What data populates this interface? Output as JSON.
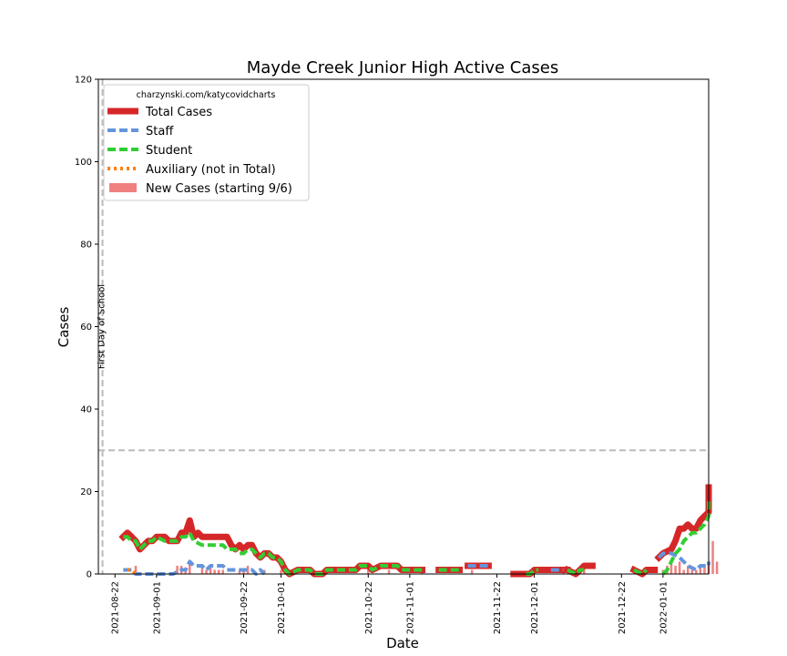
{
  "chart_data": {
    "type": "line",
    "title": "Mayde Creek Junior High Active Cases",
    "xlabel": "Date",
    "ylabel": "Cases",
    "ylim": [
      0,
      120
    ],
    "xlim": [
      "2021-08-18",
      "2022-01-12"
    ],
    "yticks": [
      0,
      20,
      40,
      60,
      80,
      100,
      120
    ],
    "xticks": [
      "2021-08-22",
      "2021-09-01",
      "2021-09-22",
      "2021-10-01",
      "2021-10-22",
      "2021-11-01",
      "2021-11-22",
      "2021-12-01",
      "2021-12-22",
      "2022-01-01"
    ],
    "legend_title": "charzynski.com/katycovidcharts",
    "legend_position": "upper-left",
    "annotations": [
      {
        "text": "First Day of School",
        "date": "2021-08-19"
      }
    ],
    "reference_lines": [
      {
        "type": "vertical",
        "date": "2021-08-19"
      },
      {
        "type": "horizontal",
        "y": 30
      }
    ],
    "colors": {
      "total": "#d62728",
      "staff": "#6495dc",
      "student": "#32cd32",
      "auxiliary": "#ff7f0e",
      "new_cases": "#f08080",
      "reference": "#bbbbbb"
    },
    "series": [
      {
        "name": "Total Cases",
        "style": "solid",
        "points": [
          [
            "2021-08-24",
            9
          ],
          [
            "2021-08-25",
            10
          ],
          [
            "2021-08-26",
            9
          ],
          [
            "2021-08-27",
            8
          ],
          [
            "2021-08-28",
            6
          ],
          [
            "2021-08-29",
            7
          ],
          [
            "2021-08-30",
            8
          ],
          [
            "2021-08-31",
            8
          ],
          [
            "2021-09-01",
            9
          ],
          [
            "2021-09-03",
            9
          ],
          [
            "2021-09-04",
            8
          ],
          [
            "2021-09-06",
            8
          ],
          [
            "2021-09-07",
            10
          ],
          [
            "2021-09-08",
            10
          ],
          [
            "2021-09-09",
            13
          ],
          [
            "2021-09-10",
            9
          ],
          [
            "2021-09-11",
            10
          ],
          [
            "2021-09-12",
            9
          ],
          [
            "2021-09-18",
            9
          ],
          [
            "2021-09-19",
            7
          ],
          [
            "2021-09-20",
            6
          ],
          [
            "2021-09-21",
            7
          ],
          [
            "2021-09-22",
            6
          ],
          [
            "2021-09-23",
            7
          ],
          [
            "2021-09-24",
            7
          ],
          [
            "2021-09-25",
            5
          ],
          [
            "2021-09-26",
            4
          ],
          [
            "2021-09-27",
            5
          ],
          [
            "2021-09-28",
            5
          ],
          [
            "2021-09-29",
            4
          ],
          [
            "2021-09-30",
            4
          ],
          [
            "2021-10-01",
            3
          ],
          [
            "2021-10-02",
            1
          ],
          [
            "2021-10-03",
            0
          ],
          [
            "2021-10-05",
            1
          ],
          [
            "2021-10-08",
            1
          ],
          [
            "2021-10-09",
            0
          ],
          [
            "2021-10-11",
            0
          ],
          [
            "2021-10-12",
            1
          ],
          [
            "2021-10-19",
            1
          ],
          [
            "2021-10-20",
            2
          ],
          [
            "2021-10-22",
            2
          ],
          [
            "2021-10-23",
            1
          ],
          [
            "2021-10-25",
            2
          ],
          [
            "2021-10-29",
            2
          ],
          [
            "2021-10-30",
            1
          ],
          [
            "2021-11-04",
            1
          ]
        ]
      },
      {
        "name": "Staff",
        "style": "dashed",
        "points": [
          [
            "2021-08-24",
            1
          ],
          [
            "2021-08-26",
            1
          ],
          [
            "2021-08-27",
            0
          ],
          [
            "2021-09-05",
            0
          ],
          [
            "2021-09-07",
            1
          ],
          [
            "2021-09-08",
            1
          ],
          [
            "2021-09-09",
            3
          ],
          [
            "2021-09-10",
            2
          ],
          [
            "2021-09-11",
            2
          ],
          [
            "2021-09-12",
            2
          ],
          [
            "2021-09-13",
            1
          ],
          [
            "2021-09-14",
            2
          ],
          [
            "2021-09-17",
            2
          ],
          [
            "2021-09-18",
            1
          ],
          [
            "2021-09-24",
            1
          ],
          [
            "2021-09-25",
            0
          ],
          [
            "2021-09-26",
            1
          ],
          [
            "2021-09-27",
            0
          ]
        ]
      },
      {
        "name": "Student",
        "style": "dashed",
        "points": [
          [
            "2021-08-24",
            9
          ],
          [
            "2021-08-25",
            9
          ],
          [
            "2021-08-26",
            8
          ],
          [
            "2021-08-27",
            8
          ],
          [
            "2021-08-28",
            6
          ],
          [
            "2021-08-29",
            7
          ],
          [
            "2021-08-30",
            8
          ],
          [
            "2021-08-31",
            8
          ],
          [
            "2021-09-01",
            9
          ],
          [
            "2021-09-03",
            8
          ],
          [
            "2021-09-06",
            8
          ],
          [
            "2021-09-07",
            9
          ],
          [
            "2021-09-08",
            9
          ],
          [
            "2021-09-09",
            10
          ],
          [
            "2021-09-10",
            8
          ],
          [
            "2021-09-12",
            7
          ],
          [
            "2021-09-17",
            7
          ],
          [
            "2021-09-18",
            6
          ],
          [
            "2021-09-20",
            6
          ],
          [
            "2021-09-21",
            5
          ],
          [
            "2021-09-22",
            5
          ],
          [
            "2021-09-23",
            6
          ],
          [
            "2021-09-24",
            6
          ],
          [
            "2021-09-25",
            5
          ],
          [
            "2021-09-26",
            4
          ],
          [
            "2021-09-27",
            5
          ],
          [
            "2021-09-28",
            5
          ],
          [
            "2021-09-29",
            4
          ],
          [
            "2021-09-30",
            4
          ],
          [
            "2021-10-01",
            3
          ],
          [
            "2021-10-02",
            1
          ],
          [
            "2021-10-03",
            0
          ],
          [
            "2021-10-05",
            1
          ],
          [
            "2021-10-08",
            1
          ],
          [
            "2021-10-09",
            0
          ],
          [
            "2021-10-11",
            0
          ],
          [
            "2021-10-12",
            1
          ],
          [
            "2021-10-19",
            1
          ],
          [
            "2021-10-20",
            2
          ],
          [
            "2021-10-22",
            2
          ],
          [
            "2021-10-23",
            1
          ],
          [
            "2021-10-25",
            2
          ],
          [
            "2021-10-29",
            2
          ],
          [
            "2021-10-30",
            1
          ],
          [
            "2021-11-04",
            1
          ]
        ]
      },
      {
        "name": "Auxiliary (not in Total)",
        "style": "dotted",
        "points": [
          [
            "2021-08-25",
            1
          ],
          [
            "2021-08-26",
            1
          ],
          [
            "2021-08-27",
            0
          ]
        ]
      }
    ],
    "segments": [
      {
        "series": "Total Cases",
        "points": [
          [
            "2021-11-08",
            1
          ],
          [
            "2021-11-13",
            1
          ]
        ]
      },
      {
        "series": "Student",
        "points": [
          [
            "2021-11-08",
            1
          ],
          [
            "2021-11-13",
            1
          ]
        ]
      },
      {
        "series": "Total Cases",
        "points": [
          [
            "2021-11-15",
            2
          ],
          [
            "2021-11-20",
            2
          ]
        ]
      },
      {
        "series": "Staff",
        "points": [
          [
            "2021-11-15",
            2
          ],
          [
            "2021-11-20",
            2
          ]
        ]
      },
      {
        "series": "Total Cases",
        "points": [
          [
            "2021-11-26",
            0
          ],
          [
            "2021-11-30",
            0
          ],
          [
            "2021-12-01",
            1
          ],
          [
            "2021-12-04",
            1
          ]
        ]
      },
      {
        "series": "Student",
        "points": [
          [
            "2021-11-29",
            0
          ],
          [
            "2021-11-30",
            0
          ],
          [
            "2021-12-01",
            1
          ],
          [
            "2021-12-02",
            1
          ]
        ]
      },
      {
        "series": "Total Cases",
        "points": [
          [
            "2021-12-04",
            1
          ],
          [
            "2021-12-09",
            1
          ]
        ]
      },
      {
        "series": "Staff",
        "points": [
          [
            "2021-12-05",
            1
          ],
          [
            "2021-12-08",
            1
          ]
        ]
      },
      {
        "series": "Total Cases",
        "points": [
          [
            "2021-12-09",
            1
          ],
          [
            "2021-12-11",
            0
          ],
          [
            "2021-12-12",
            1
          ],
          [
            "2021-12-13",
            2
          ],
          [
            "2021-12-15",
            2
          ]
        ]
      },
      {
        "series": "Student",
        "points": [
          [
            "2021-12-09",
            1
          ],
          [
            "2021-12-11",
            0
          ],
          [
            "2021-12-12",
            1
          ],
          [
            "2021-12-13",
            1
          ]
        ]
      },
      {
        "series": "Total Cases",
        "points": [
          [
            "2021-12-25",
            1
          ],
          [
            "2021-12-27",
            0
          ],
          [
            "2021-12-28",
            1
          ],
          [
            "2021-12-30",
            1
          ]
        ]
      },
      {
        "series": "Student",
        "points": [
          [
            "2021-12-25",
            1
          ],
          [
            "2021-12-27",
            0
          ],
          [
            "2021-12-28",
            1
          ]
        ]
      },
      {
        "series": "Total Cases",
        "points": [
          [
            "2021-12-31",
            4
          ],
          [
            "2022-01-01",
            5
          ],
          [
            "2022-01-03",
            6
          ],
          [
            "2022-01-04",
            8
          ],
          [
            "2022-01-05",
            11
          ],
          [
            "2022-01-06",
            11
          ],
          [
            "2022-01-07",
            12
          ],
          [
            "2022-01-08",
            11
          ],
          [
            "2022-01-09",
            11
          ],
          [
            "2022-01-10",
            13
          ],
          [
            "2022-01-11",
            14
          ],
          [
            "2022-01-12",
            15
          ],
          [
            "2022-01-13",
            20
          ],
          [
            "2022-01-14",
            21
          ],
          [
            "2022-01-15",
            21
          ]
        ]
      },
      {
        "series": "Staff",
        "points": [
          [
            "2021-12-31",
            4
          ],
          [
            "2022-01-01",
            5
          ],
          [
            "2022-01-02",
            5
          ],
          [
            "2022-01-03",
            5
          ],
          [
            "2022-01-05",
            4
          ],
          [
            "2022-01-07",
            2
          ],
          [
            "2022-01-09",
            1
          ],
          [
            "2022-01-10",
            2
          ],
          [
            "2022-01-12",
            2
          ],
          [
            "2022-01-13",
            3
          ],
          [
            "2022-01-14",
            3
          ]
        ]
      },
      {
        "series": "Student",
        "points": [
          [
            "2022-01-01",
            0
          ],
          [
            "2022-01-02",
            1
          ],
          [
            "2022-01-03",
            3
          ],
          [
            "2022-01-04",
            5
          ],
          [
            "2022-01-05",
            6
          ],
          [
            "2022-01-06",
            8
          ],
          [
            "2022-01-07",
            9
          ],
          [
            "2022-01-08",
            10
          ],
          [
            "2022-01-09",
            10
          ],
          [
            "2022-01-10",
            11
          ],
          [
            "2022-01-11",
            12
          ],
          [
            "2022-01-12",
            14
          ],
          [
            "2022-01-13",
            17
          ],
          [
            "2022-01-14",
            18
          ]
        ]
      }
    ],
    "bars": {
      "name": "New Cases (starting 9/6)",
      "values": [
        [
          "2021-08-27",
          2
        ],
        [
          "2021-09-06",
          2
        ],
        [
          "2021-09-07",
          2
        ],
        [
          "2021-09-08",
          1
        ],
        [
          "2021-09-09",
          3
        ],
        [
          "2021-09-12",
          2
        ],
        [
          "2021-09-13",
          1
        ],
        [
          "2021-09-14",
          2
        ],
        [
          "2021-09-15",
          1
        ],
        [
          "2021-09-16",
          1
        ],
        [
          "2021-09-17",
          1
        ],
        [
          "2021-09-21",
          1
        ],
        [
          "2021-09-22",
          1
        ],
        [
          "2021-09-23",
          2
        ],
        [
          "2021-09-27",
          1
        ],
        [
          "2021-10-01",
          1
        ],
        [
          "2021-10-22",
          1
        ],
        [
          "2021-10-27",
          1
        ],
        [
          "2021-11-04",
          1
        ],
        [
          "2021-11-16",
          1
        ],
        [
          "2021-11-30",
          1
        ],
        [
          "2021-12-08",
          1
        ],
        [
          "2021-12-13",
          1
        ],
        [
          "2021-12-28",
          1
        ],
        [
          "2022-01-01",
          1
        ],
        [
          "2022-01-02",
          2
        ],
        [
          "2022-01-03",
          3
        ],
        [
          "2022-01-04",
          2
        ],
        [
          "2022-01-05",
          3
        ],
        [
          "2022-01-06",
          1
        ],
        [
          "2022-01-07",
          2
        ],
        [
          "2022-01-08",
          1
        ],
        [
          "2022-01-09",
          1
        ],
        [
          "2022-01-10",
          2
        ],
        [
          "2022-01-11",
          2
        ],
        [
          "2022-01-12",
          3
        ],
        [
          "2022-01-13",
          8
        ],
        [
          "2022-01-14",
          3
        ]
      ]
    }
  }
}
